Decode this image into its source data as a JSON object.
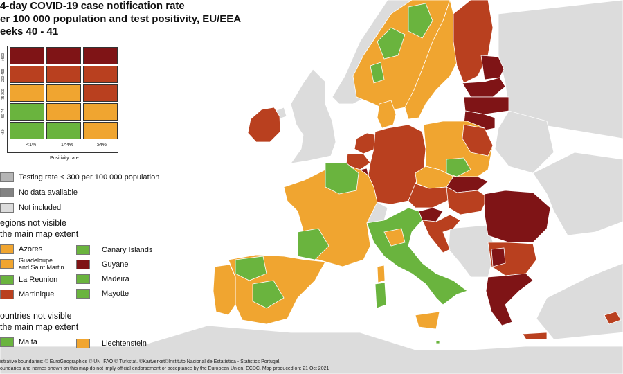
{
  "title": "4-day COVID-19 case notification rate\ner 100 000 population and test positivity, EU/EEA\neeks 40 - 41",
  "colors": {
    "dark_red": "#7f1416",
    "red": "#b9401f",
    "orange": "#f0a530",
    "green": "#6ab43e",
    "testing_rate": "#b5b5b5",
    "no_data": "#828282",
    "not_included": "#dcdcdc",
    "sea": "#ffffff"
  },
  "matrix": {
    "rows": [
      ">500",
      "200-499",
      "75-200",
      "50-74",
      "<50"
    ],
    "cols": [
      "<1%",
      "1<4%",
      "≥4%"
    ],
    "axis_label": "Positivity rate",
    "cells": [
      [
        "dark_red",
        "dark_red",
        "dark_red"
      ],
      [
        "red",
        "red",
        "red"
      ],
      [
        "orange",
        "orange",
        "red"
      ],
      [
        "green",
        "orange",
        "orange"
      ],
      [
        "green",
        "green",
        "orange"
      ]
    ]
  },
  "legend": {
    "testing_rate": "Testing rate < 300 per 100 000 population",
    "no_data": "No data available",
    "not_included": "Not included"
  },
  "regions_section": {
    "title": "egions not visible\nthe main map extent",
    "left": [
      {
        "label": "Azores",
        "color": "orange"
      },
      {
        "label": "Guadeloupe\nand Saint Martin",
        "color": "orange"
      },
      {
        "label": "La Reunion",
        "color": "green"
      },
      {
        "label": "Martinique",
        "color": "red"
      }
    ],
    "right": [
      {
        "label": "Canary Islands",
        "color": "green"
      },
      {
        "label": "Guyane",
        "color": "dark_red"
      },
      {
        "label": "Madeira",
        "color": "green"
      },
      {
        "label": "Mayotte",
        "color": "green"
      }
    ]
  },
  "countries_section": {
    "title": "ountries not visible\nthe main map extent",
    "items": [
      {
        "label": "Malta",
        "color": "green"
      },
      {
        "label": "Liechtenstein",
        "color": "orange"
      }
    ]
  },
  "footer": {
    "line1": "istrative boundaries: © EuroGeographics © UN–FAO © Turkstat. ©Kartverket©Instituto Nacional de Estatística - Statistics Portugal.",
    "line2": "oundaries and names shown on this map do not imply official endorsement or acceptance by the European Union. ECDC. Map produced on: 21 Oct 2021"
  }
}
